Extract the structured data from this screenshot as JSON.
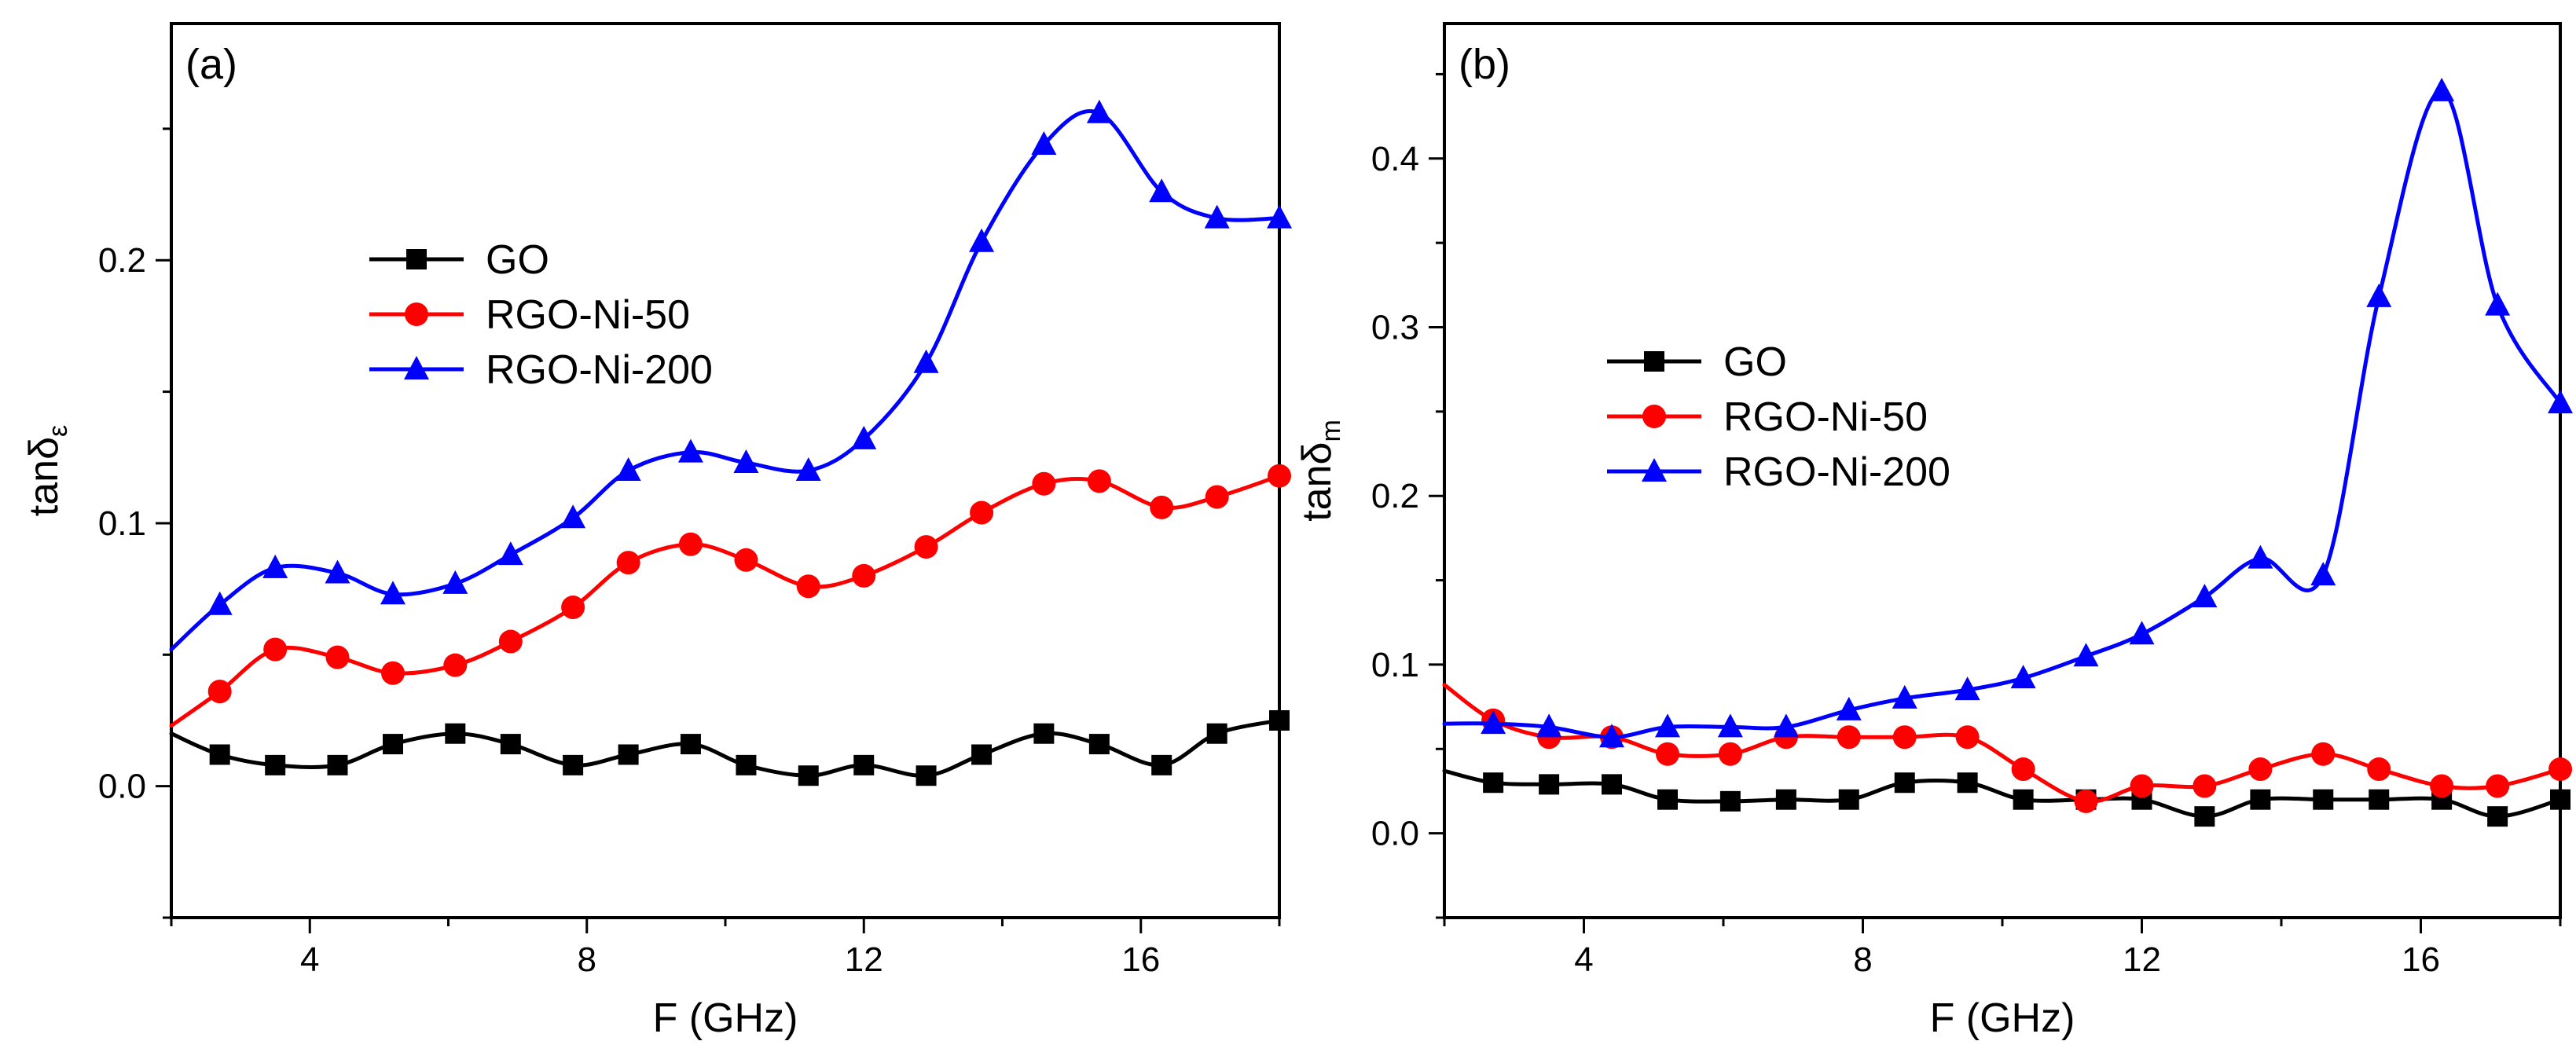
{
  "chart_data": [
    {
      "type": "line",
      "panel_label": "(a)",
      "xlabel": "F (GHz)",
      "ylabel_main": "tanδ",
      "ylabel_sub": "ε",
      "xlim": [
        2,
        18
      ],
      "ylim": [
        -0.05,
        0.29
      ],
      "xticks": [
        4,
        8,
        12,
        16
      ],
      "yticks": [
        0.0,
        0.1,
        0.2
      ],
      "xtick_labels": [
        "4",
        "8",
        "12",
        "16"
      ],
      "ytick_labels": [
        "0.0",
        "0.1",
        "0.2"
      ],
      "legend_position": "center-left",
      "x": [
        2.0,
        2.7,
        3.5,
        4.4,
        5.2,
        6.1,
        6.9,
        7.8,
        8.6,
        9.5,
        10.3,
        11.2,
        12.0,
        12.9,
        13.7,
        14.6,
        15.4,
        16.3,
        17.1,
        18.0
      ],
      "series": [
        {
          "name": "GO",
          "color": "#000000",
          "marker": "square",
          "values": [
            0.02,
            0.012,
            0.008,
            0.008,
            0.016,
            0.02,
            0.016,
            0.008,
            0.012,
            0.016,
            0.008,
            0.004,
            0.008,
            0.004,
            0.012,
            0.02,
            0.016,
            0.008,
            0.02,
            0.025
          ]
        },
        {
          "name": "RGO-Ni-50",
          "color": "#ff0000",
          "marker": "circle",
          "values": [
            0.023,
            0.036,
            0.052,
            0.049,
            0.043,
            0.046,
            0.055,
            0.068,
            0.085,
            0.092,
            0.086,
            0.076,
            0.08,
            0.091,
            0.104,
            0.115,
            0.116,
            0.106,
            0.11,
            0.118
          ]
        },
        {
          "name": "RGO-Ni-200",
          "color": "#0000ff",
          "marker": "triangle",
          "values": [
            0.052,
            0.069,
            0.083,
            0.081,
            0.073,
            0.077,
            0.088,
            0.102,
            0.12,
            0.127,
            0.123,
            0.12,
            0.132,
            0.161,
            0.207,
            0.244,
            0.256,
            0.226,
            0.216,
            0.216
          ]
        }
      ]
    },
    {
      "type": "line",
      "panel_label": "(b)",
      "xlabel": "F (GHz)",
      "ylabel_main": "tanδ",
      "ylabel_sub": "m",
      "xlim": [
        2,
        18
      ],
      "ylim": [
        -0.05,
        0.48
      ],
      "xticks": [
        4,
        8,
        12,
        16
      ],
      "yticks": [
        0.0,
        0.1,
        0.2,
        0.3,
        0.4
      ],
      "xtick_labels": [
        "4",
        "8",
        "12",
        "16"
      ],
      "ytick_labels": [
        "0.0",
        "0.1",
        "0.2",
        "0.3",
        "0.4"
      ],
      "legend_position": "center-left",
      "x": [
        2.0,
        2.7,
        3.5,
        4.4,
        5.2,
        6.1,
        6.9,
        7.8,
        8.6,
        9.5,
        10.3,
        11.2,
        12.0,
        12.9,
        13.7,
        14.6,
        15.4,
        16.3,
        17.1,
        18.0
      ],
      "series": [
        {
          "name": "GO",
          "color": "#000000",
          "marker": "square",
          "values": [
            0.037,
            0.03,
            0.029,
            0.029,
            0.02,
            0.019,
            0.02,
            0.02,
            0.03,
            0.03,
            0.02,
            0.02,
            0.02,
            0.01,
            0.02,
            0.02,
            0.02,
            0.02,
            0.01,
            0.02
          ]
        },
        {
          "name": "RGO-Ni-50",
          "color": "#ff0000",
          "marker": "circle",
          "values": [
            0.088,
            0.067,
            0.057,
            0.057,
            0.047,
            0.047,
            0.057,
            0.057,
            0.057,
            0.057,
            0.038,
            0.019,
            0.028,
            0.028,
            0.038,
            0.047,
            0.038,
            0.028,
            0.028,
            0.038
          ]
        },
        {
          "name": "RGO-Ni-200",
          "color": "#0000ff",
          "marker": "triangle",
          "values": [
            0.065,
            0.065,
            0.063,
            0.057,
            0.063,
            0.063,
            0.063,
            0.073,
            0.08,
            0.085,
            0.092,
            0.105,
            0.118,
            0.14,
            0.163,
            0.153,
            0.318,
            0.44,
            0.313,
            0.255
          ]
        }
      ]
    }
  ]
}
